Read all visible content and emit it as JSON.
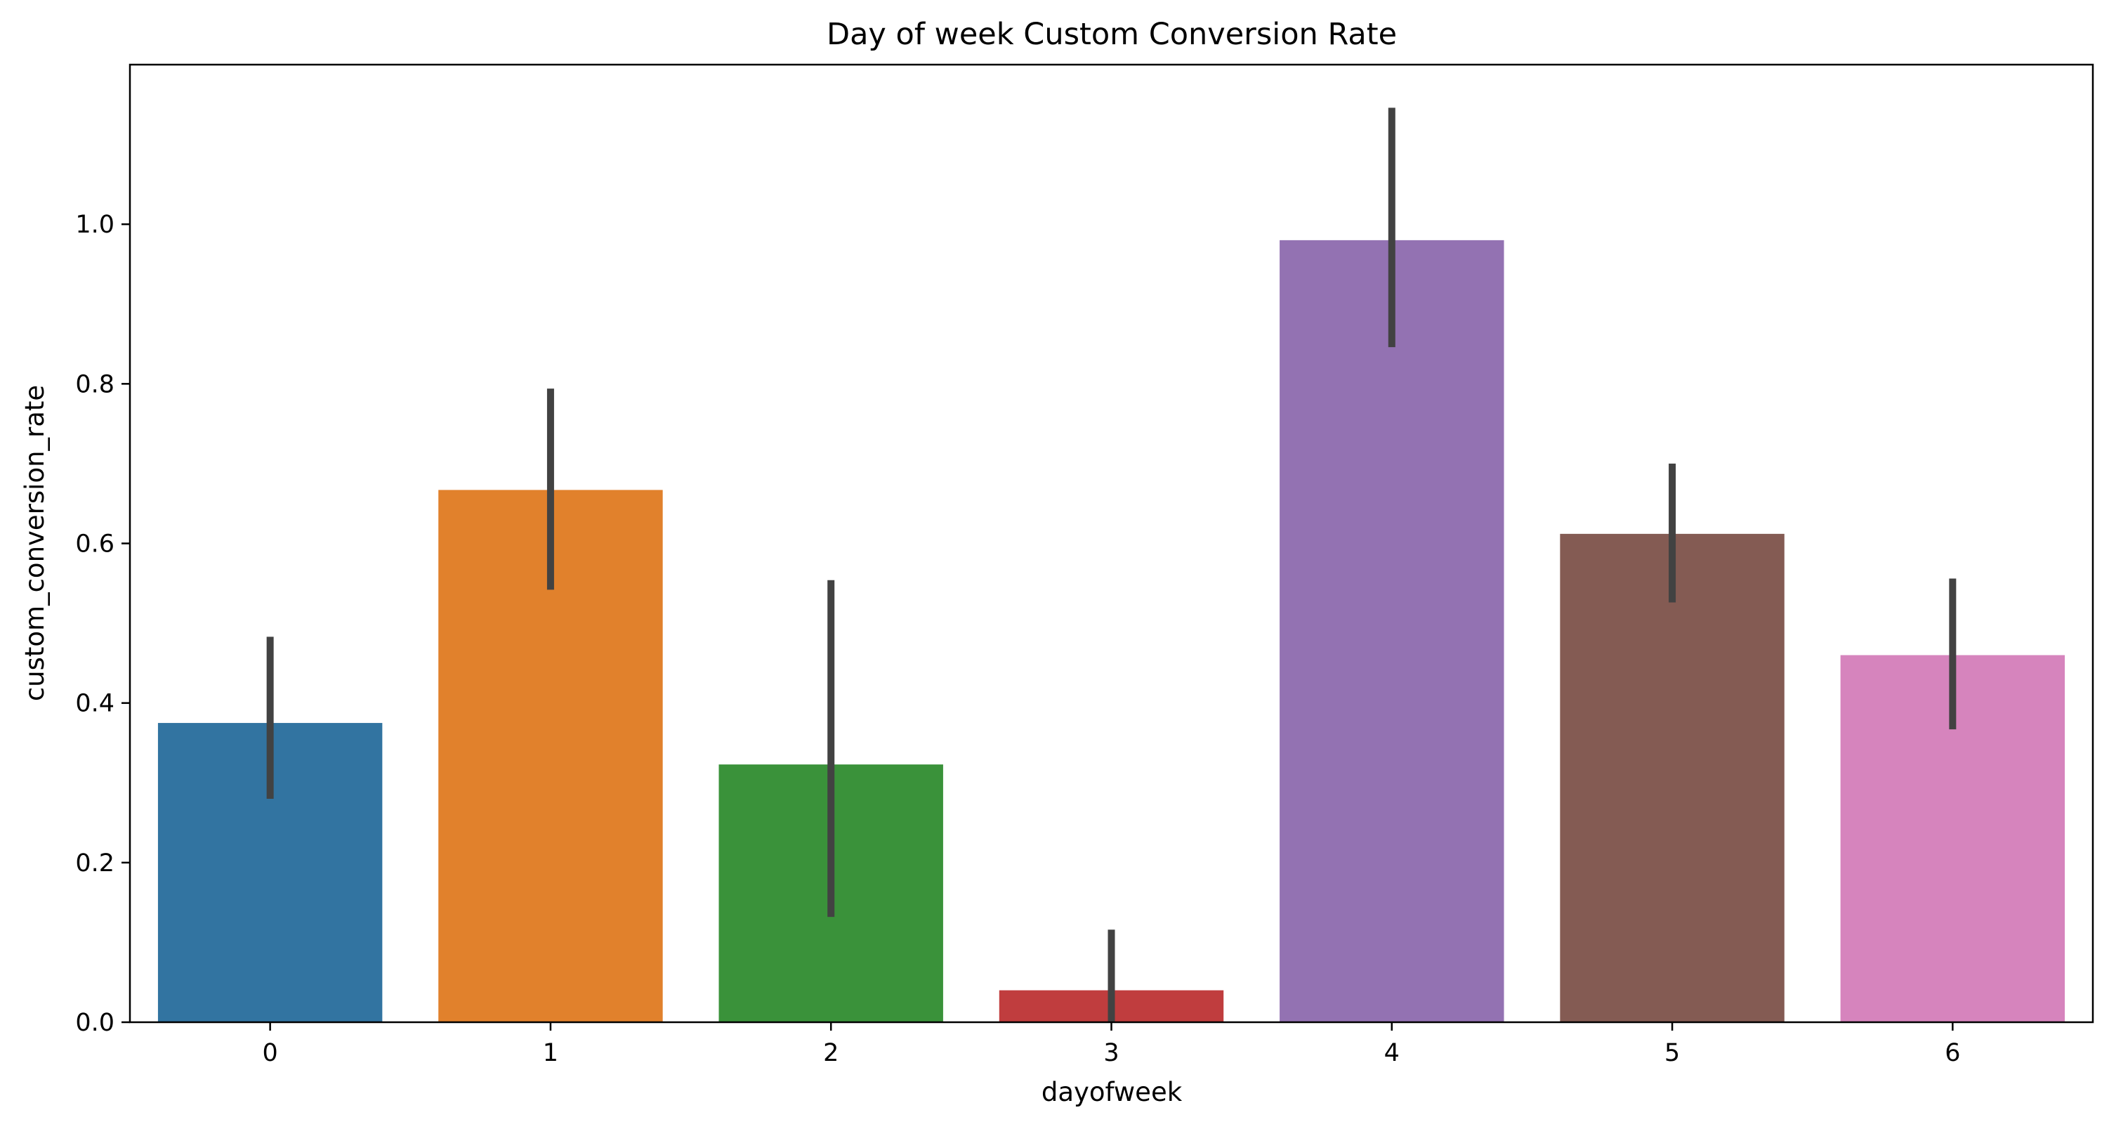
{
  "chart_data": {
    "type": "bar",
    "title": "Day of week Custom Conversion Rate",
    "xlabel": "dayofweek",
    "ylabel": "custom_conversion_rate",
    "categories": [
      "0",
      "1",
      "2",
      "3",
      "4",
      "5",
      "6"
    ],
    "values": [
      0.375,
      0.667,
      0.323,
      0.04,
      0.98,
      0.612,
      0.46
    ],
    "error_low": [
      0.28,
      0.542,
      0.132,
      0.0,
      0.846,
      0.526,
      0.367
    ],
    "error_high": [
      0.483,
      0.794,
      0.554,
      0.116,
      1.146,
      0.7,
      0.556
    ],
    "colors": [
      "#3274a1",
      "#e1812c",
      "#3a923a",
      "#c03d3e",
      "#9372b2",
      "#845b53",
      "#d684bd"
    ],
    "errorbar_color": "#424242",
    "ylim": [
      0,
      1.2
    ],
    "yticks": [
      "0.0",
      "0.2",
      "0.4",
      "0.6",
      "0.8",
      "1.0"
    ],
    "grid": false,
    "legend": "none"
  }
}
